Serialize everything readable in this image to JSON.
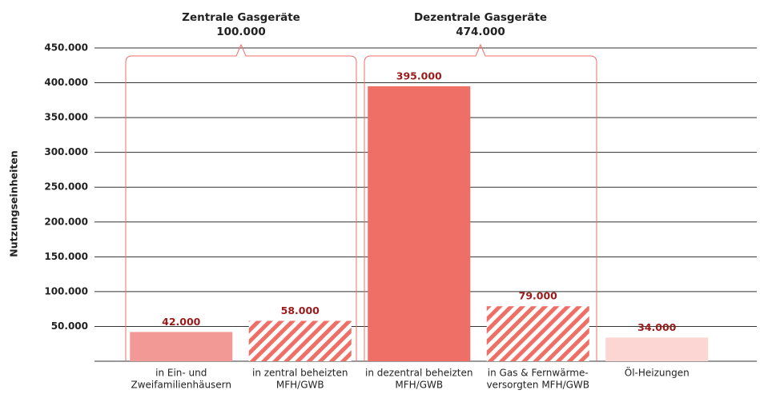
{
  "chart_data": {
    "type": "bar",
    "y_axis_label": "Nutzungseinheiten",
    "categories": [
      [
        "in Ein- und",
        "Zweifamilienhäusern"
      ],
      [
        "in zentral beheizten",
        "MFH/GWB"
      ],
      [
        "in dezentral beheizten",
        "MFH/GWB"
      ],
      [
        "in Gas & Fernwärme-",
        "versorgten MFH/GWB"
      ],
      [
        "Öl-Heizungen"
      ]
    ],
    "values": [
      42000,
      58000,
      395000,
      79000,
      34000
    ],
    "value_labels": [
      "42.000",
      "58.000",
      "395.000",
      "79.000",
      "34.000"
    ],
    "colors": [
      "#f29895",
      "#f4928c",
      "#ef6f66",
      "#ef6f66",
      "#fbd6d3"
    ],
    "hatch": [
      false,
      true,
      false,
      true,
      false
    ],
    "ylim": [
      0,
      450000
    ],
    "yticks": [
      {
        "value": 50000,
        "label": "50.000"
      },
      {
        "value": 100000,
        "label": "100.000"
      },
      {
        "value": 150000,
        "label": "150.000"
      },
      {
        "value": 200000,
        "label": "200.000"
      },
      {
        "value": 250000,
        "label": "250.000"
      },
      {
        "value": 300000,
        "label": "300.000"
      },
      {
        "value": 350000,
        "label": "350.000"
      },
      {
        "value": 400000,
        "label": "400.000"
      },
      {
        "value": 450000,
        "label": "450.000"
      }
    ],
    "grid": true,
    "annotations": [
      {
        "text": "Zentrale Gasgeräte",
        "value_label": "100.000"
      },
      {
        "text": "Dezentrale Gasgeräte",
        "value_label": "474.000"
      }
    ]
  }
}
